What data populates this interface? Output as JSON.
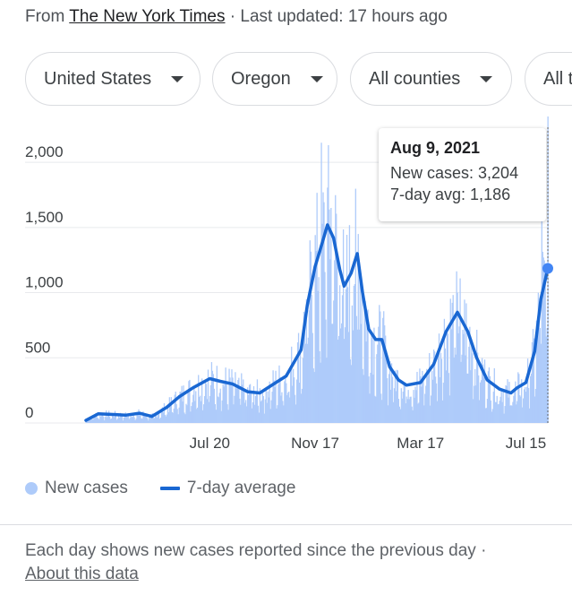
{
  "source": {
    "prefix": "From",
    "publisher": "The New York Times",
    "separator": "·",
    "updated": "Last updated: 17 hours ago"
  },
  "filters": [
    {
      "label": "United States"
    },
    {
      "label": "Oregon"
    },
    {
      "label": "All counties"
    },
    {
      "label": "All t"
    }
  ],
  "tooltip": {
    "date": "Aug 9, 2021",
    "new_cases": "New cases: 3,204",
    "avg": "7-day avg: 1,186"
  },
  "legend": {
    "bars": "New cases",
    "line": "7-day average"
  },
  "footer": {
    "text": "Each day shows new cases reported since the previous day",
    "separator": "·",
    "link": "About this data"
  },
  "colors": {
    "bars": "#aecbfa",
    "line": "#1967d2",
    "grid": "#e8eaed",
    "axis_text": "#3c4043"
  },
  "chart_data": {
    "type": "bar",
    "title": "",
    "xlabel": "",
    "ylabel": "",
    "ylim": [
      0,
      2200
    ],
    "yticks": [
      {
        "value": 0,
        "label": "0"
      },
      {
        "value": 500,
        "label": "500"
      },
      {
        "value": 1000,
        "label": "1,000"
      },
      {
        "value": 1500,
        "label": "1,500"
      },
      {
        "value": 2000,
        "label": "2,000"
      }
    ],
    "x_start": "2020-03-01",
    "x_end": "2021-08-09",
    "xticks": [
      {
        "date": "2020-07-20",
        "label": "Jul 20"
      },
      {
        "date": "2020-11-17",
        "label": "Nov 17"
      },
      {
        "date": "2021-03-17",
        "label": "Mar 17"
      },
      {
        "date": "2021-07-15",
        "label": "Jul 15"
      }
    ],
    "series": [
      {
        "name": "7-day average",
        "points": [
          [
            "2020-03-01",
            20
          ],
          [
            "2020-03-15",
            70
          ],
          [
            "2020-04-01",
            65
          ],
          [
            "2020-04-15",
            60
          ],
          [
            "2020-05-01",
            75
          ],
          [
            "2020-05-15",
            50
          ],
          [
            "2020-06-01",
            120
          ],
          [
            "2020-06-15",
            200
          ],
          [
            "2020-07-01",
            270
          ],
          [
            "2020-07-20",
            340
          ],
          [
            "2020-08-01",
            320
          ],
          [
            "2020-08-15",
            300
          ],
          [
            "2020-09-01",
            240
          ],
          [
            "2020-09-15",
            230
          ],
          [
            "2020-10-01",
            300
          ],
          [
            "2020-10-15",
            360
          ],
          [
            "2020-11-01",
            560
          ],
          [
            "2020-11-08",
            900
          ],
          [
            "2020-11-17",
            1200
          ],
          [
            "2020-11-25",
            1380
          ],
          [
            "2020-12-01",
            1520
          ],
          [
            "2020-12-08",
            1420
          ],
          [
            "2020-12-15",
            1180
          ],
          [
            "2020-12-20",
            1050
          ],
          [
            "2020-12-28",
            1150
          ],
          [
            "2021-01-04",
            1300
          ],
          [
            "2021-01-10",
            1000
          ],
          [
            "2021-01-17",
            720
          ],
          [
            "2021-01-25",
            640
          ],
          [
            "2021-02-01",
            640
          ],
          [
            "2021-02-10",
            430
          ],
          [
            "2021-02-20",
            330
          ],
          [
            "2021-03-01",
            290
          ],
          [
            "2021-03-17",
            310
          ],
          [
            "2021-04-01",
            450
          ],
          [
            "2021-04-15",
            700
          ],
          [
            "2021-04-28",
            850
          ],
          [
            "2021-05-10",
            700
          ],
          [
            "2021-05-20",
            500
          ],
          [
            "2021-06-01",
            330
          ],
          [
            "2021-06-15",
            260
          ],
          [
            "2021-06-28",
            230
          ],
          [
            "2021-07-05",
            270
          ],
          [
            "2021-07-15",
            310
          ],
          [
            "2021-07-25",
            550
          ],
          [
            "2021-08-01",
            950
          ],
          [
            "2021-08-09",
            1186
          ]
        ]
      }
    ],
    "bar_series": {
      "name": "New cases",
      "peaks": [
        [
          "2020-11-24",
          2150
        ],
        [
          "2020-12-05",
          1650
        ],
        [
          "2021-01-05",
          1450
        ],
        [
          "2021-04-28",
          1000
        ],
        [
          "2021-08-02",
          1550
        ],
        [
          "2021-08-09",
          3204
        ]
      ]
    },
    "highlight": {
      "date": "2021-08-09",
      "new_cases": 3204,
      "avg": 1186
    }
  }
}
